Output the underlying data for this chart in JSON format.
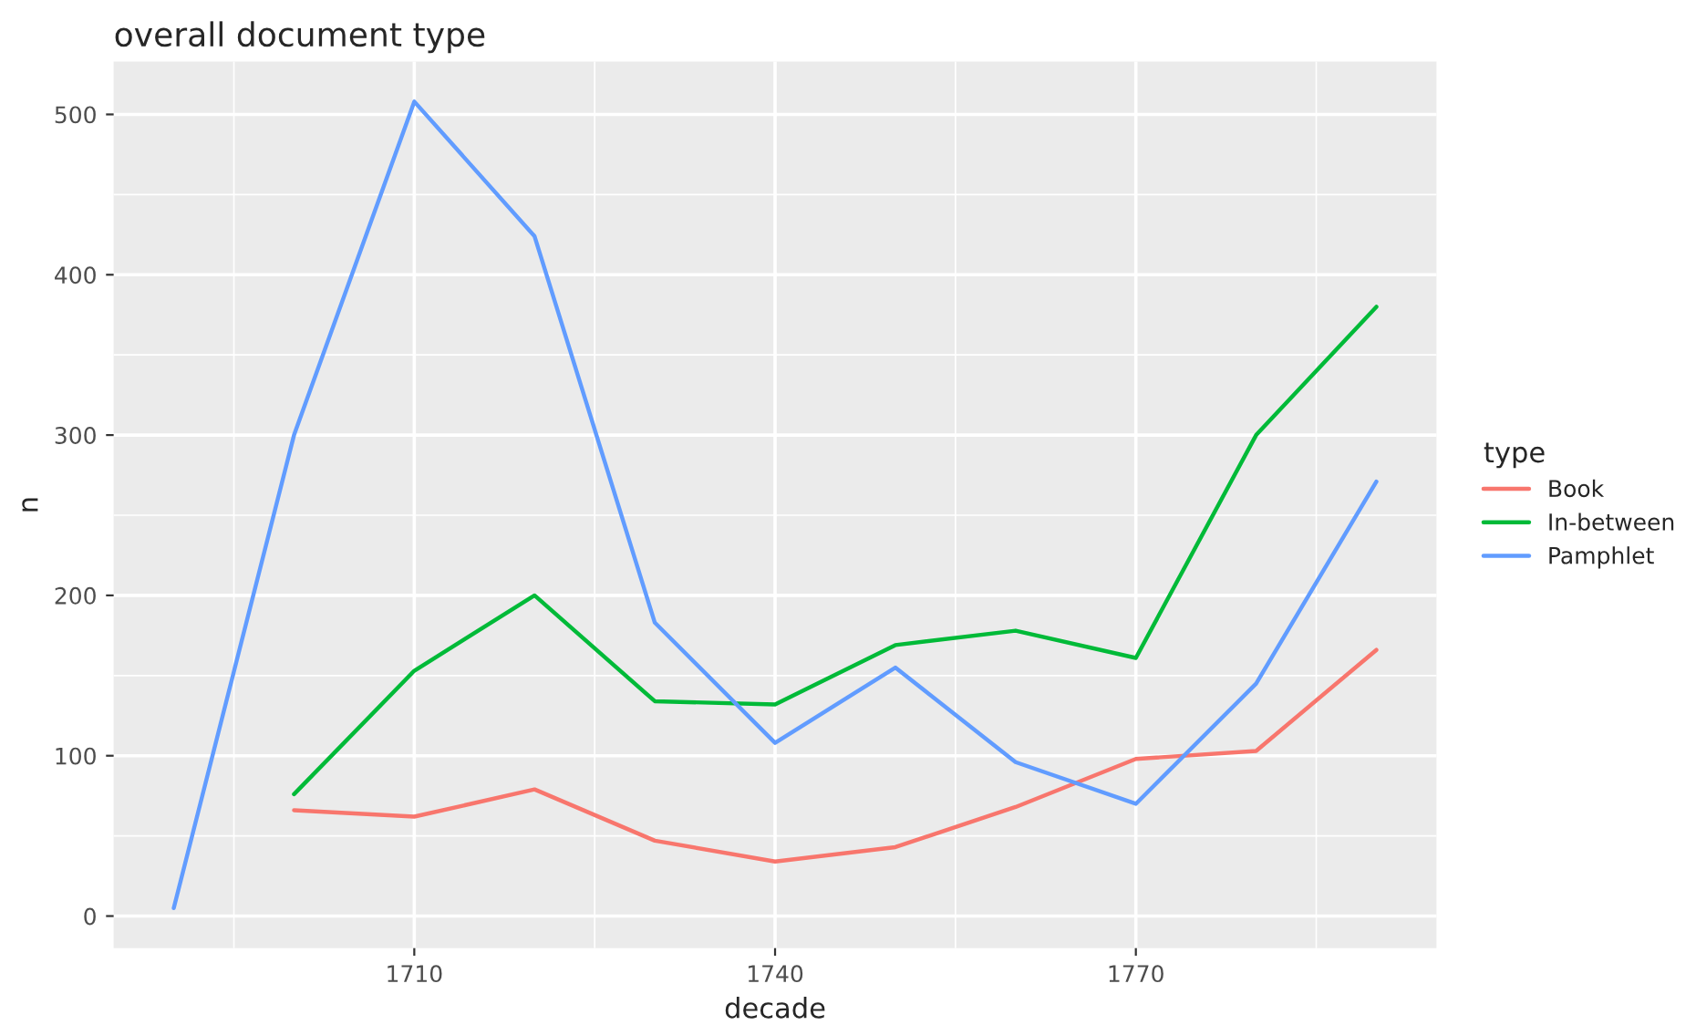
{
  "chart_data": {
    "type": "line",
    "title": "overall document type",
    "xlabel": "decade",
    "ylabel": "n",
    "legend_title": "type",
    "legend": "right",
    "grid": true,
    "xlim": [
      1685,
      1795
    ],
    "xticks": [
      1710,
      1740,
      1770
    ],
    "ylim": [
      -20,
      533
    ],
    "yticks": [
      0,
      100,
      200,
      300,
      400,
      500
    ],
    "series": [
      {
        "name": "Book",
        "color": "#f8766d",
        "x": [
          1700,
          1710,
          1720,
          1730,
          1740,
          1750,
          1760,
          1770,
          1780,
          1790
        ],
        "values": [
          66,
          62,
          79,
          47,
          34,
          43,
          68,
          98,
          103,
          166
        ]
      },
      {
        "name": "In-between",
        "color": "#00ba38",
        "x": [
          1700,
          1710,
          1720,
          1730,
          1740,
          1750,
          1760,
          1770,
          1780,
          1790
        ],
        "values": [
          76,
          153,
          200,
          134,
          132,
          169,
          178,
          161,
          300,
          380
        ]
      },
      {
        "name": "Pamphlet",
        "color": "#619cff",
        "x": [
          1690,
          1700,
          1710,
          1720,
          1730,
          1740,
          1750,
          1760,
          1770,
          1780,
          1790
        ],
        "values": [
          5,
          300,
          508,
          424,
          183,
          108,
          155,
          96,
          70,
          145,
          271
        ]
      }
    ]
  }
}
